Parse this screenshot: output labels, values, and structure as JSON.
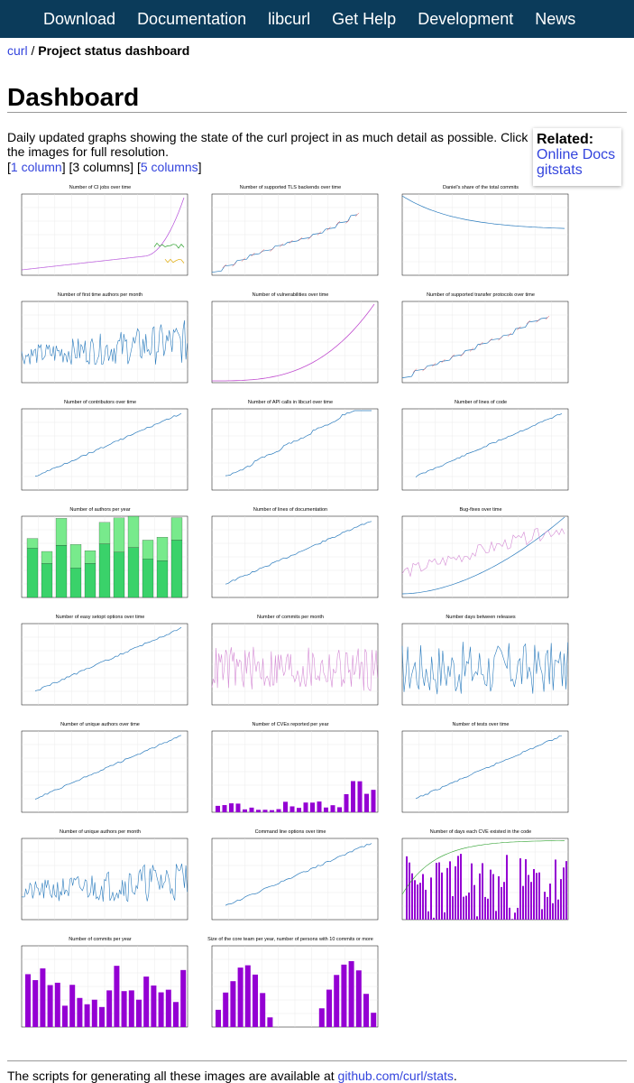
{
  "nav": {
    "items": [
      "Download",
      "Documentation",
      "libcurl",
      "Get Help",
      "Development",
      "News"
    ]
  },
  "breadcrumb": {
    "link": "curl",
    "sep": " / ",
    "current": "Project status dashboard"
  },
  "page_title": "Dashboard",
  "intro": "Daily updated graphs showing the state of the curl project in as much detail as possible. Click the images for full resolution.",
  "columns": {
    "lb1": "[",
    "one": "1 column",
    "rb1": "] ",
    "three": "[3 columns] ",
    "lb5": "[",
    "five": "5 columns",
    "rb5": "]"
  },
  "related": {
    "title": "Related:",
    "links": [
      "Online Docs",
      "gitstats"
    ]
  },
  "colors": {
    "line_blue": "#2a7bbd",
    "bar_purple": "#9400d3",
    "bar_green": "#3ad26a",
    "pink": "#d48ad4",
    "red": "#e8474a",
    "nav_bg": "#0b3b5a"
  },
  "graphs": [
    {
      "title": "Number of CI jobs over time",
      "kind": "ci"
    },
    {
      "title": "Number of supported TLS backends over time",
      "kind": "tls"
    },
    {
      "title": "Daniel's share of the total commits",
      "kind": "share"
    },
    {
      "title": "Number of first time authors per month",
      "kind": "noisy"
    },
    {
      "title": "Number of vulnerabilities over time",
      "kind": "vuln"
    },
    {
      "title": "Number of supported transfer protocols over time",
      "kind": "proto"
    },
    {
      "title": "Number of contributors over time",
      "kind": "rise"
    },
    {
      "title": "Number of API calls in libcurl over time",
      "kind": "api"
    },
    {
      "title": "Number of lines of code",
      "kind": "rise2"
    },
    {
      "title": "Number of authors per year",
      "kind": "greenbars"
    },
    {
      "title": "Number of lines of documentation",
      "kind": "rise3"
    },
    {
      "title": "Bug-fixes over time",
      "kind": "bugfix"
    },
    {
      "title": "Number of easy setopt options over time",
      "kind": "rise4"
    },
    {
      "title": "Number of commits per month",
      "kind": "pinknoise"
    },
    {
      "title": "Number days between releases",
      "kind": "releases"
    },
    {
      "title": "Number of unique authors over time",
      "kind": "rise5"
    },
    {
      "title": "Number of CVEs reported per year",
      "kind": "cvebars"
    },
    {
      "title": "Number of tests over time",
      "kind": "rise6"
    },
    {
      "title": "Number of unique authors per month",
      "kind": "noisy2"
    },
    {
      "title": "Command line options over time",
      "kind": "rise7"
    },
    {
      "title": "Number of days each CVE existed in the code",
      "kind": "cvedays"
    },
    {
      "title": "Number of commits per year",
      "kind": "commitbars"
    },
    {
      "title": "Size of the core team per year, number of persons with 10 commits or more",
      "kind": "corebars"
    }
  ],
  "footer": {
    "text": "The scripts for generating all these images are available at ",
    "link": "github.com/curl/stats",
    "end": "."
  }
}
